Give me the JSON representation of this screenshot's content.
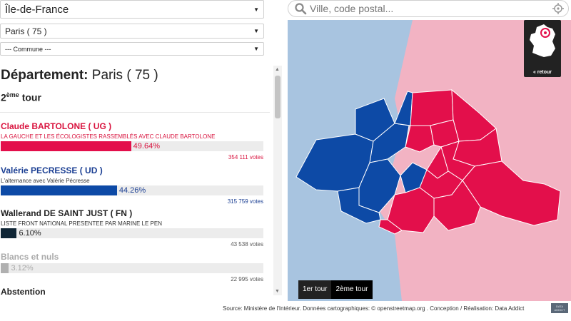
{
  "filters": {
    "region": "Île-de-France",
    "departement": "Paris ( 75 )",
    "commune": "--- Commune ---"
  },
  "results": {
    "dept_label": "Département:",
    "dept_name": "Paris ( 75 )",
    "tour_num": "2",
    "tour_sup": "ème",
    "tour_word": "tour",
    "candidates": [
      {
        "name": "Claude BARTOLONE ( UG )",
        "list": "LA GAUCHE ET LES ÉCOLOGISTES RASSEMBLÉS AVEC CLAUDE BARTOLONE",
        "pct": "49.64%",
        "share": 0.4964,
        "votes": "354 111 votes",
        "color": "#e30f4b",
        "text_color": "#d9143f"
      },
      {
        "name": "Valérie PECRESSE ( UD )",
        "list": "L'alternance avec Valérie Pécresse",
        "pct": "44.26%",
        "share": 0.4426,
        "votes": "315 759 votes",
        "color": "#0d4aa6",
        "text_color": "#1b3f93"
      },
      {
        "name": "Wallerand DE SAINT JUST ( FN )",
        "list": "LISTE FRONT NATIONAL PRESENTEE PAR MARINE LE PEN",
        "pct": "6.10%",
        "share": 0.061,
        "votes": "43 538 votes",
        "color": "#0f2535",
        "text_color": "#222222"
      },
      {
        "name": "Blancs et nuls",
        "list": "",
        "pct": "3.12%",
        "share": 0.0312,
        "votes": "22 995 votes",
        "color": "#b0b0b0",
        "text_color": "#aaaaaa"
      }
    ],
    "abstention": "Abstention"
  },
  "map": {
    "search_placeholder": "Ville, code postal...",
    "retour": "« retour",
    "tour_buttons": [
      "1er tour",
      "2ème tour"
    ],
    "colors": {
      "left": "#e30f4b",
      "right": "#0d4aa6",
      "water": "#a8c4e0",
      "pink_region": "#f2b3c3"
    }
  },
  "footer": {
    "source": "Source: Ministère de l'Intérieur. Données cartographiques: © openstreetmap.org . Conception / Réalisation: Data Addict",
    "logo_text": "DATA ADDICT"
  }
}
